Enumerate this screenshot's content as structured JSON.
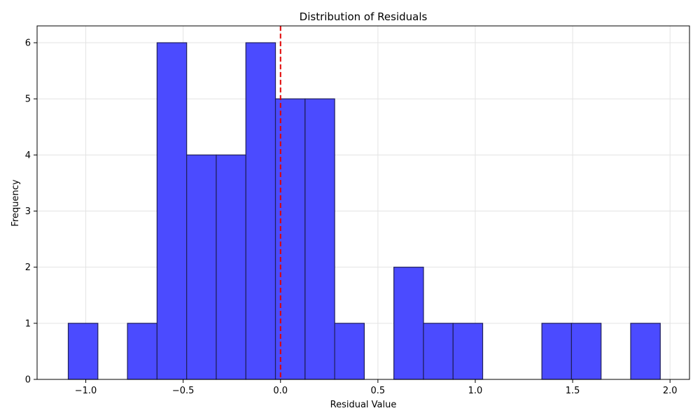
{
  "chart_data": {
    "type": "bar",
    "title": "Distribution of Residuals",
    "xlabel": "Residual Value",
    "ylabel": "Frequency",
    "xlim": [
      -1.25,
      2.1
    ],
    "ylim": [
      0,
      6.3
    ],
    "xticks": [
      -1.0,
      -0.5,
      0.0,
      0.5,
      1.0,
      1.5,
      2.0
    ],
    "xtick_labels": [
      "−1.0",
      "−0.5",
      "0.0",
      "0.5",
      "1.0",
      "1.5",
      "2.0"
    ],
    "yticks": [
      0,
      1,
      2,
      3,
      4,
      5,
      6
    ],
    "ytick_labels": [
      "0",
      "1",
      "2",
      "3",
      "4",
      "5",
      "6"
    ],
    "grid": true,
    "bin_edges": [
      -1.09,
      -0.938,
      -0.786,
      -0.634,
      -0.482,
      -0.33,
      -0.178,
      -0.026,
      0.126,
      0.278,
      0.43,
      0.582,
      0.734,
      0.886,
      1.038,
      1.19,
      1.342,
      1.494,
      1.646,
      1.798,
      1.95
    ],
    "counts": [
      1,
      0,
      1,
      6,
      4,
      4,
      6,
      5,
      5,
      1,
      0,
      2,
      1,
      1,
      0,
      0,
      1,
      1,
      0,
      1
    ],
    "bar_color": "#4b4bff",
    "bar_edge_color": "#1f1f5a",
    "reference_line": {
      "x": 0.0,
      "color": "#e00000",
      "style": "dashed"
    }
  }
}
